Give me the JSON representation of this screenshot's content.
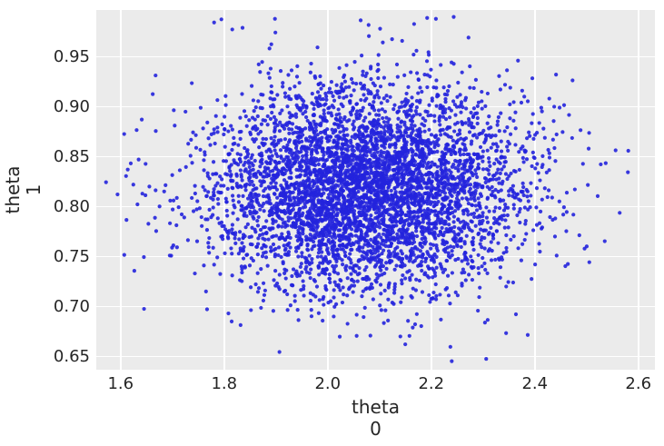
{
  "figure": {
    "background": "#ffffff"
  },
  "chart_data": {
    "type": "scatter",
    "title": "",
    "xlabel": "theta\n0",
    "ylabel": "theta\n1",
    "xlabel_lines": [
      "theta",
      "0"
    ],
    "ylabel_lines": [
      "theta",
      "1"
    ],
    "xlim": [
      1.553,
      2.632
    ],
    "ylim": [
      0.637,
      0.997
    ],
    "xticks": {
      "values": [
        1.6,
        1.8,
        2.0,
        2.2,
        2.4,
        2.6
      ],
      "labels": [
        "1.6",
        "1.8",
        "2.0",
        "2.2",
        "2.4",
        "2.6"
      ]
    },
    "yticks": {
      "values": [
        0.65,
        0.7,
        0.75,
        0.8,
        0.85,
        0.9,
        0.95
      ],
      "labels": [
        "0.65",
        "0.70",
        "0.75",
        "0.80",
        "0.85",
        "0.90",
        "0.95"
      ]
    },
    "grid": true,
    "legend": null,
    "series": [
      {
        "marker": "point",
        "color": "#2424dd",
        "alpha": 0.9,
        "marker_radius_px": 2.1,
        "distribution": "bivariate_normal",
        "n": 5000,
        "mean": [
          2.08,
          0.819
        ],
        "std": [
          0.148,
          0.051
        ],
        "seed": 7,
        "x_range_observed": [
          1.6,
          2.58
        ],
        "y_range_observed": [
          0.648,
          0.985
        ]
      }
    ],
    "style": {
      "plot_background": "#ebebeb",
      "grid_color": "#ffffff",
      "text_color": "#262626"
    }
  }
}
